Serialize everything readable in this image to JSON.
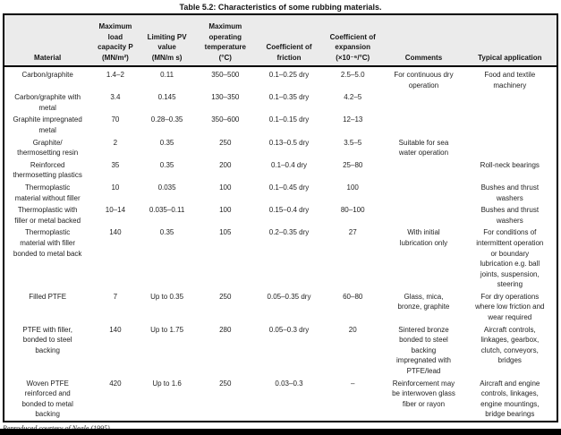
{
  "title": "Table 5.2: Characteristics of some rubbing materials.",
  "footer": "Reproduced courtesy of Neale (1995).",
  "table": {
    "columns": [
      {
        "id": "material",
        "label": "Material"
      },
      {
        "id": "max_load_capacity",
        "label": "Maximum\nload\ncapacity P\n(MN/m²)"
      },
      {
        "id": "limiting_pv_value",
        "label": "Limiting PV\nvalue\n(MN/m s)"
      },
      {
        "id": "max_operating_temperature",
        "label": "Maximum\noperating\ntemperature\n(°C)"
      },
      {
        "id": "coefficient_of_friction",
        "label": "Coefficient of\nfriction"
      },
      {
        "id": "coefficient_of_expansion",
        "label": "Coefficient of\nexpansion\n(×10⁻⁶/°C)"
      },
      {
        "id": "comments",
        "label": "Comments"
      },
      {
        "id": "typical_application",
        "label": "Typical application"
      }
    ],
    "rows": [
      [
        "Carbon/graphite",
        "1.4–2",
        "0.11",
        "350–500",
        "0.1–0.25 dry",
        "2.5–5.0",
        "For continuous dry\noperation",
        "Food and textile\nmachinery"
      ],
      [
        "Carbon/graphite with\nmetal",
        "3.4",
        "0.145",
        "130–350",
        "0.1–0.35 dry",
        "4.2–5",
        "",
        ""
      ],
      [
        "Graphite impregnated\nmetal",
        "70",
        "0.28–0.35",
        "350–600",
        "0.1–0.15 dry",
        "12–13",
        "",
        ""
      ],
      [
        "Graphite/\nthermosetting resin",
        "2",
        "0.35",
        "250",
        "0.13–0.5 dry",
        "3.5–5",
        "Suitable for sea\nwater operation",
        ""
      ],
      [
        "Reinforced\nthermosetting plastics",
        "35",
        "0.35",
        "200",
        "0.1–0.4 dry",
        "25–80",
        "",
        "Roll-neck bearings"
      ],
      [
        "Thermoplastic\nmaterial without filler",
        "10",
        "0.035",
        "100",
        "0.1–0.45 dry",
        "100",
        "",
        "Bushes and thrust\nwashers"
      ],
      [
        "Thermoplastic with\nfiller or metal backed",
        "10–14",
        "0.035–0.11",
        "100",
        "0.15–0.4 dry",
        "80–100",
        "",
        "Bushes and thrust\nwashers"
      ],
      [
        "Thermoplastic\nmaterial with filler\nbonded to metal back",
        "140",
        "0.35",
        "105",
        "0.2–0.35 dry",
        "27",
        "With initial\nlubrication only",
        "For conditions of\nintermittent operation\nor boundary\nlubrication e.g. ball\njoints, suspension,\nsteering"
      ],
      [
        "Filled PTFE",
        "7",
        "Up to 0.35",
        "250",
        "0.05–0.35 dry",
        "60–80",
        "Glass, mica,\nbronze, graphite",
        "For dry operations\nwhere low friction and\nwear required"
      ],
      [
        "PTFE with filler,\nbonded to steel\nbacking",
        "140",
        "Up to 1.75",
        "280",
        "0.05–0.3 dry",
        "20",
        "Sintered bronze\nbonded to steel\nbacking\nimpregnated with\nPTFE/lead",
        "Aircraft controls,\nlinkages, gearbox,\nclutch, conveyors,\nbridges"
      ],
      [
        "Woven PTFE\nreinforced and\nbonded to metal\nbacking",
        "420",
        "Up to 1.6",
        "250",
        "0.03–0.3",
        "–",
        "Reinforcement may\nbe interwoven glass\nfiber or rayon",
        "Aircraft and engine\ncontrols, linkages,\nengine mountings,\nbridge bearings"
      ]
    ]
  }
}
